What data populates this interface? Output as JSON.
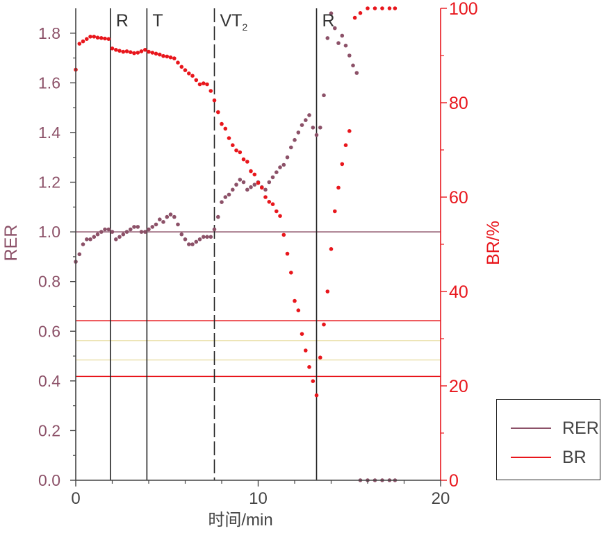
{
  "chart_data": {
    "type": "scatter",
    "xlabel": "时间/min",
    "ylabel_left": "RER",
    "ylabel_right": "BR/%",
    "xlim": [
      0,
      20
    ],
    "ylim_left": [
      0,
      1.9
    ],
    "ylim_right": [
      0,
      100
    ],
    "x_ticks": [
      "0",
      "10",
      "20"
    ],
    "y_left_ticks": [
      "0.0",
      "0.2",
      "0.4",
      "0.6",
      "0.8",
      "1.0",
      "1.2",
      "1.4",
      "1.6",
      "1.8"
    ],
    "y_right_ticks": [
      "0",
      "20",
      "40",
      "60",
      "80",
      "100"
    ],
    "colors": {
      "RER": "#8c5168",
      "BR": "#e8161c",
      "threshold_lines": "#222222",
      "pale_band": "#ece3b2"
    },
    "legend_position": "lower-right outside",
    "legend": [
      "RER",
      "BR"
    ],
    "phase_markers": [
      {
        "x": 1.9,
        "label": "R",
        "style": "solid"
      },
      {
        "x": 3.9,
        "label": "T",
        "style": "solid"
      },
      {
        "x": 7.6,
        "label": "VT",
        "label_sub": "2",
        "style": "dashed"
      },
      {
        "x": 13.2,
        "label": "R",
        "style": "solid"
      }
    ],
    "reference_lines": [
      {
        "axis": "left",
        "y": 1.0,
        "color": "#8c5168"
      },
      {
        "axis": "right",
        "y": 33.8,
        "color": "#e8161c"
      },
      {
        "axis": "right",
        "y": 22.0,
        "color": "#e8161c"
      },
      {
        "axis": "right",
        "y": 29.6,
        "color": "#ece3b2"
      },
      {
        "axis": "right",
        "y": 25.5,
        "color": "#ece3b2"
      }
    ],
    "series": [
      {
        "name": "RER",
        "axis": "left",
        "points": [
          [
            0.0,
            0.88
          ],
          [
            0.2,
            0.91
          ],
          [
            0.4,
            0.95
          ],
          [
            0.6,
            0.97
          ],
          [
            0.8,
            0.97
          ],
          [
            1.0,
            0.98
          ],
          [
            1.2,
            0.99
          ],
          [
            1.4,
            1.0
          ],
          [
            1.6,
            1.01
          ],
          [
            1.8,
            1.01
          ],
          [
            2.0,
            1.0
          ],
          [
            2.2,
            0.97
          ],
          [
            2.4,
            0.98
          ],
          [
            2.6,
            0.99
          ],
          [
            2.8,
            1.0
          ],
          [
            3.0,
            1.01
          ],
          [
            3.2,
            1.02
          ],
          [
            3.4,
            1.02
          ],
          [
            3.6,
            1.0
          ],
          [
            3.8,
            1.0
          ],
          [
            4.0,
            1.01
          ],
          [
            4.2,
            1.02
          ],
          [
            4.4,
            1.03
          ],
          [
            4.6,
            1.05
          ],
          [
            4.8,
            1.04
          ],
          [
            5.0,
            1.06
          ],
          [
            5.2,
            1.07
          ],
          [
            5.4,
            1.06
          ],
          [
            5.6,
            1.03
          ],
          [
            5.8,
            0.99
          ],
          [
            6.0,
            0.97
          ],
          [
            6.2,
            0.95
          ],
          [
            6.4,
            0.95
          ],
          [
            6.6,
            0.96
          ],
          [
            6.8,
            0.97
          ],
          [
            7.0,
            0.98
          ],
          [
            7.2,
            0.98
          ],
          [
            7.4,
            0.98
          ],
          [
            7.6,
            1.01
          ],
          [
            7.8,
            1.06
          ],
          [
            8.0,
            1.12
          ],
          [
            8.2,
            1.14
          ],
          [
            8.4,
            1.15
          ],
          [
            8.6,
            1.17
          ],
          [
            8.8,
            1.19
          ],
          [
            9.0,
            1.21
          ],
          [
            9.2,
            1.2
          ],
          [
            9.4,
            1.17
          ],
          [
            9.6,
            1.18
          ],
          [
            9.8,
            1.19
          ],
          [
            10.0,
            1.2
          ],
          [
            10.2,
            1.18
          ],
          [
            10.4,
            1.17
          ],
          [
            10.6,
            1.2
          ],
          [
            10.8,
            1.22
          ],
          [
            11.0,
            1.24
          ],
          [
            11.2,
            1.26
          ],
          [
            11.4,
            1.27
          ],
          [
            11.6,
            1.3
          ],
          [
            11.8,
            1.34
          ],
          [
            12.0,
            1.37
          ],
          [
            12.2,
            1.4
          ],
          [
            12.4,
            1.43
          ],
          [
            12.6,
            1.45
          ],
          [
            12.8,
            1.47
          ],
          [
            13.0,
            1.42
          ],
          [
            13.2,
            1.39
          ],
          [
            13.4,
            1.42
          ],
          [
            13.6,
            1.55
          ],
          [
            13.8,
            1.78
          ],
          [
            14.0,
            1.88
          ],
          [
            14.2,
            1.82
          ],
          [
            14.4,
            1.76
          ],
          [
            14.6,
            1.79
          ],
          [
            14.8,
            1.75
          ],
          [
            15.0,
            1.71
          ],
          [
            15.2,
            1.67
          ],
          [
            15.4,
            1.64
          ],
          [
            15.6,
            0.0
          ],
          [
            16.0,
            0.0
          ],
          [
            16.4,
            0.0
          ],
          [
            16.8,
            0.0
          ],
          [
            17.2,
            0.0
          ],
          [
            17.5,
            0.0
          ]
        ]
      },
      {
        "name": "BR",
        "axis": "right",
        "points": [
          [
            0.0,
            87.0
          ],
          [
            0.2,
            92.5
          ],
          [
            0.4,
            93.0
          ],
          [
            0.6,
            93.5
          ],
          [
            0.8,
            94.0
          ],
          [
            1.0,
            94.0
          ],
          [
            1.2,
            93.8
          ],
          [
            1.4,
            93.7
          ],
          [
            1.6,
            93.6
          ],
          [
            1.8,
            93.5
          ],
          [
            2.0,
            91.5
          ],
          [
            2.2,
            91.2
          ],
          [
            2.4,
            91.0
          ],
          [
            2.6,
            90.8
          ],
          [
            2.8,
            90.9
          ],
          [
            3.0,
            90.7
          ],
          [
            3.2,
            90.5
          ],
          [
            3.4,
            90.6
          ],
          [
            3.6,
            90.9
          ],
          [
            3.8,
            91.2
          ],
          [
            4.0,
            90.8
          ],
          [
            4.2,
            90.6
          ],
          [
            4.4,
            90.4
          ],
          [
            4.6,
            90.2
          ],
          [
            4.8,
            89.9
          ],
          [
            5.0,
            89.8
          ],
          [
            5.2,
            89.6
          ],
          [
            5.4,
            89.4
          ],
          [
            5.6,
            88.5
          ],
          [
            5.8,
            87.6
          ],
          [
            6.0,
            86.9
          ],
          [
            6.2,
            86.2
          ],
          [
            6.4,
            85.7
          ],
          [
            6.6,
            84.8
          ],
          [
            6.8,
            83.9
          ],
          [
            7.0,
            84.1
          ],
          [
            7.2,
            83.9
          ],
          [
            7.4,
            82.5
          ],
          [
            7.6,
            80.5
          ],
          [
            7.8,
            78.0
          ],
          [
            8.0,
            75.5
          ],
          [
            8.2,
            74.5
          ],
          [
            8.4,
            72.5
          ],
          [
            8.6,
            71.0
          ],
          [
            8.8,
            69.9
          ],
          [
            9.0,
            69.5
          ],
          [
            9.2,
            68.0
          ],
          [
            9.4,
            67.5
          ],
          [
            9.6,
            65.5
          ],
          [
            9.8,
            64.8
          ],
          [
            10.0,
            63.0
          ],
          [
            10.2,
            62.0
          ],
          [
            10.4,
            60.0
          ],
          [
            10.6,
            59.0
          ],
          [
            10.8,
            58.5
          ],
          [
            11.0,
            57.0
          ],
          [
            11.2,
            56.0
          ],
          [
            11.4,
            52.0
          ],
          [
            11.6,
            48.0
          ],
          [
            11.8,
            44.0
          ],
          [
            12.0,
            38.0
          ],
          [
            12.2,
            36.0
          ],
          [
            12.4,
            31.0
          ],
          [
            12.6,
            27.5
          ],
          [
            12.8,
            24.0
          ],
          [
            13.0,
            21.0
          ],
          [
            13.2,
            18.0
          ],
          [
            13.4,
            26.0
          ],
          [
            13.6,
            33.0
          ],
          [
            13.8,
            40.0
          ],
          [
            14.0,
            49.0
          ],
          [
            14.2,
            57.0
          ],
          [
            14.4,
            62.0
          ],
          [
            14.6,
            67.0
          ],
          [
            14.8,
            71.0
          ],
          [
            15.0,
            74.0
          ],
          [
            15.3,
            98.0
          ],
          [
            15.6,
            99.0
          ],
          [
            16.0,
            100.0
          ],
          [
            16.4,
            100.0
          ],
          [
            16.8,
            100.0
          ],
          [
            17.2,
            100.0
          ],
          [
            17.5,
            100.0
          ]
        ]
      }
    ]
  }
}
